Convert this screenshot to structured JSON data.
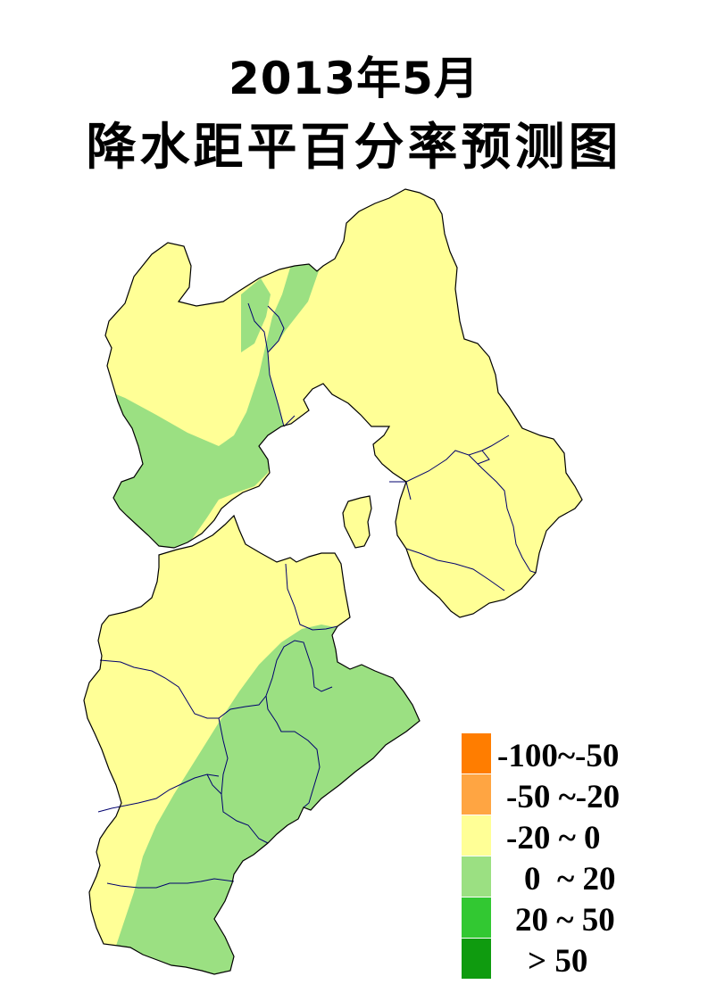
{
  "title": {
    "line1": "2013年5月",
    "line2": "降水距平百分率预测图"
  },
  "colors": {
    "border": "#00006e",
    "background": "#ffffff",
    "neg_100_50": "#ff7d00",
    "neg_50_20": "#ffa542",
    "neg_20_0": "#ffff96",
    "pos_0_20": "#9be082",
    "pos_20_50": "#32c832",
    "pos_gt_50": "#0f9b0f"
  },
  "legend": {
    "items": [
      {
        "label": "-100~-50",
        "color": "#ff7d00"
      },
      {
        "label": "-50 ~-20",
        "color": "#ffa542"
      },
      {
        "label": "-20 ~ 0",
        "color": "#ffff96"
      },
      {
        "label": "0  ~ 20",
        "color": "#9be082"
      },
      {
        "label": "20 ~ 50",
        "color": "#32c832"
      },
      {
        "label": "> 50",
        "color": "#0f9b0f"
      }
    ]
  },
  "map": {
    "regions": [
      {
        "name": "region-yellow",
        "class": "-20 ~ 0"
      },
      {
        "name": "region-green",
        "class": "0  ~ 20"
      }
    ]
  }
}
